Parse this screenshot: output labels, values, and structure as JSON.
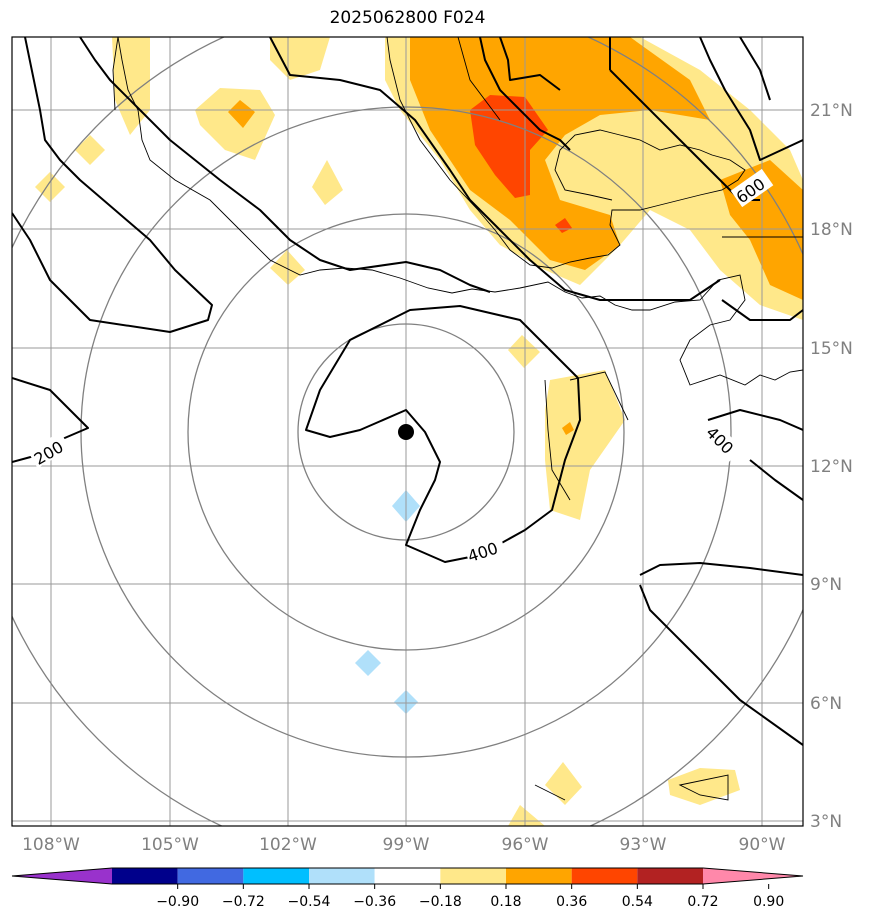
{
  "title": "2025062800 F024",
  "lat_labels": [
    "21°N",
    "18°N",
    "15°N",
    "12°N",
    "9°N",
    "6°N",
    "3°N"
  ],
  "lon_labels": [
    "108°W",
    "105°W",
    "102°W",
    "99°W",
    "96°W",
    "93°W",
    "90°W"
  ],
  "contour_labels": [
    "200",
    "400",
    "400",
    "600"
  ],
  "colorbar": {
    "ticks": [
      "−0.90",
      "−0.72",
      "−0.54",
      "−0.36",
      "−0.18",
      "0.18",
      "0.36",
      "0.54",
      "0.72",
      "0.90"
    ],
    "colors": [
      "#9932cc",
      "#00008b",
      "#4169e1",
      "#00bfff",
      "#b0e0fa",
      "#ffffff",
      "#ffe88a",
      "#ffa500",
      "#ff4500",
      "#b22222",
      "#ff88aa"
    ]
  },
  "center_marker": "storm-center",
  "colors": {
    "grid": "#999999",
    "range_rings": "#808080",
    "contours": "#000000"
  }
}
